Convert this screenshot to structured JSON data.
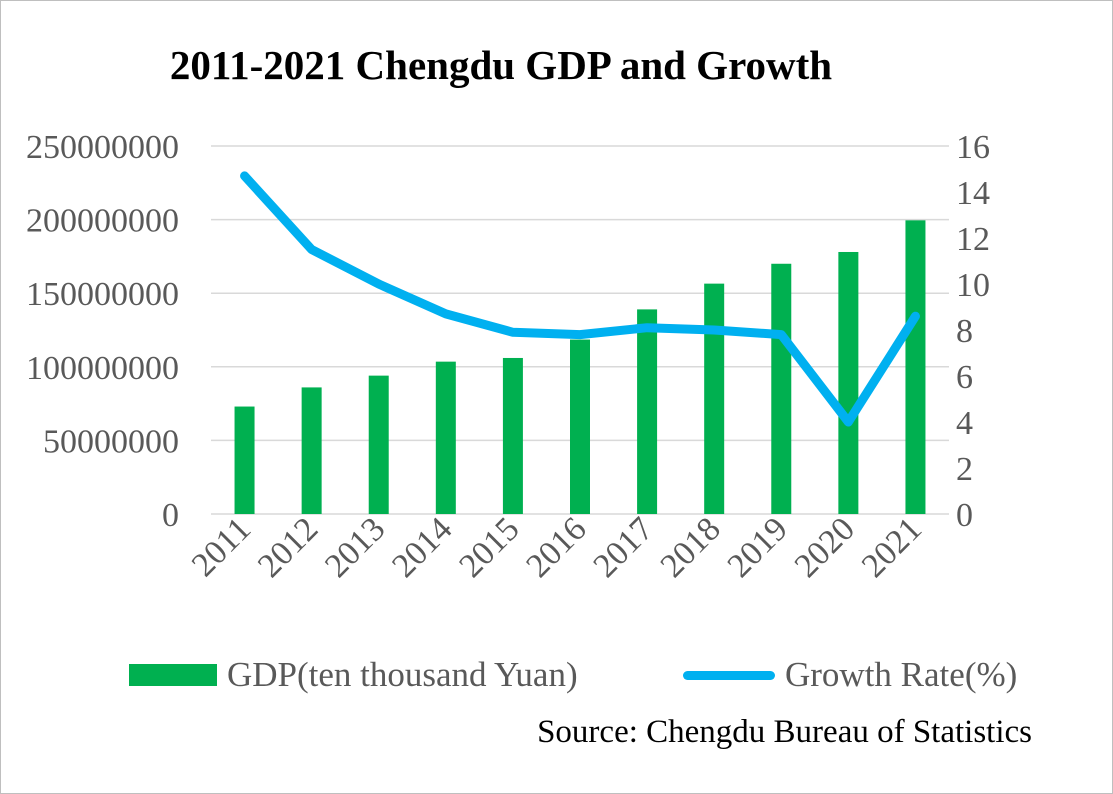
{
  "chart_data": {
    "type": "bar-line",
    "title": "2011-2021 Chengdu GDP and Growth",
    "categories": [
      "2011",
      "2012",
      "2013",
      "2014",
      "2015",
      "2016",
      "2017",
      "2018",
      "2019",
      "2020",
      "2021"
    ],
    "series": [
      {
        "name": "GDP(ten thousand Yuan)",
        "type": "bar",
        "axis": "left",
        "color": "#00b050",
        "values": [
          73000000,
          86000000,
          94000000,
          103500000,
          106000000,
          118500000,
          139000000,
          156500000,
          170000000,
          178000000,
          199500000
        ]
      },
      {
        "name": "Growth Rate(%)",
        "type": "line",
        "axis": "right",
        "color": "#00b0f0",
        "values": [
          14.7,
          11.5,
          10.0,
          8.7,
          7.9,
          7.8,
          8.1,
          8.0,
          7.8,
          4.0,
          8.6
        ]
      }
    ],
    "y_left": {
      "min": 0,
      "max": 250000000,
      "ticks": [
        "0",
        "50000000",
        "100000000",
        "150000000",
        "200000000",
        "250000000"
      ]
    },
    "y_right": {
      "min": 0,
      "max": 16,
      "ticks": [
        "0",
        "2",
        "4",
        "6",
        "8",
        "10",
        "12",
        "14",
        "16"
      ]
    },
    "grid": true,
    "legend_position": "bottom",
    "source": "Source: Chengdu Bureau of Statistics"
  }
}
